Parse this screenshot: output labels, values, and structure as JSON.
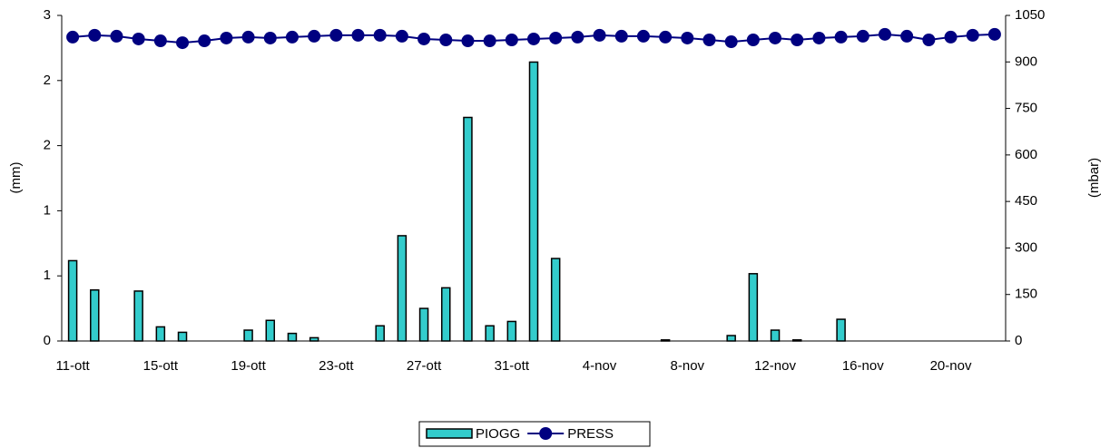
{
  "chart_data": {
    "type": "bar",
    "y_label": "(mm)",
    "y2_label": "(mbar)",
    "categories": [
      "11-ott",
      null,
      null,
      null,
      "15-ott",
      null,
      null,
      null,
      "19-ott",
      null,
      null,
      null,
      "23-ott",
      null,
      null,
      null,
      "27-ott",
      null,
      null,
      null,
      "31-ott",
      null,
      null,
      null,
      "4-nov",
      null,
      null,
      null,
      "8-nov",
      null,
      null,
      null,
      "12-nov",
      null,
      null,
      null,
      "16-nov",
      null,
      null,
      null,
      "20-nov",
      null,
      null
    ],
    "series": [
      {
        "name": "PIOGG",
        "type": "bar",
        "color": "#33cccc",
        "values": [
          0.74,
          0.47,
          0,
          0.46,
          0.13,
          0.08,
          0,
          0,
          0.1,
          0.19,
          0.07,
          0.03,
          0,
          0,
          0.14,
          0.97,
          0.3,
          0.49,
          2.06,
          0.14,
          0.18,
          2.57,
          0.76,
          0,
          0,
          0,
          0,
          0.01,
          0,
          0,
          0.05,
          0.62,
          0.1,
          0.01,
          0,
          0.2,
          0,
          0,
          0,
          0,
          0,
          0,
          0
        ]
      },
      {
        "name": "PRESS",
        "type": "line",
        "axis": "y2",
        "color": "#000080",
        "values": [
          980,
          986,
          983,
          974,
          968,
          962,
          968,
          977,
          980,
          977,
          980,
          983,
          986,
          986,
          986,
          983,
          974,
          971,
          968,
          968,
          971,
          974,
          977,
          980,
          986,
          983,
          983,
          980,
          977,
          971,
          965,
          971,
          977,
          971,
          977,
          980,
          983,
          989,
          983,
          971,
          980,
          986,
          989
        ]
      }
    ],
    "ylim": [
      0,
      3
    ],
    "yticks": [
      0,
      {
        "value": 0.6,
        "label": "1"
      },
      {
        "value": 1.2,
        "label": "1"
      },
      {
        "value": 1.8,
        "label": "2"
      },
      {
        "value": 2.4,
        "label": "2"
      },
      3
    ],
    "y2lim": [
      0,
      1050
    ],
    "y2ticks": [
      0,
      150,
      300,
      450,
      600,
      750,
      900,
      1050
    ],
    "legend": "bottom"
  }
}
